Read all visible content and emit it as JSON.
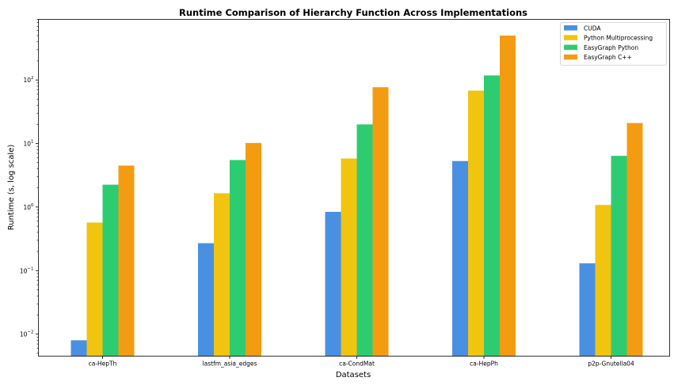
{
  "chart_data": {
    "type": "bar",
    "title": "Runtime Comparison of Hierarchy Function Across Implementations",
    "xlabel": "Datasets",
    "ylabel": "Runtime (s, log scale)",
    "yscale": "log",
    "ylim": [
      0.0045,
      900
    ],
    "yticks": [
      {
        "value": 0.01,
        "base": "10",
        "exp": "−2"
      },
      {
        "value": 0.1,
        "base": "10",
        "exp": "−1"
      },
      {
        "value": 1,
        "base": "10",
        "exp": "0"
      },
      {
        "value": 10,
        "base": "10",
        "exp": "1"
      },
      {
        "value": 100,
        "base": "10",
        "exp": "2"
      }
    ],
    "categories": [
      "ca-HepTh",
      "lastfm_asia_edges",
      "ca-CondMat",
      "ca-HepPh",
      "p2p-Gnutella04"
    ],
    "series": [
      {
        "name": "CUDA",
        "color": "#4a90e2",
        "values": [
          0.008,
          0.27,
          0.84,
          5.3,
          0.13
        ]
      },
      {
        "name": "Python Multiprocessing",
        "color": "#f1c40f",
        "values": [
          0.57,
          1.65,
          5.8,
          68,
          1.08
        ]
      },
      {
        "name": "EasyGraph Python",
        "color": "#2ecc71",
        "values": [
          2.25,
          5.5,
          20,
          118,
          6.4
        ]
      },
      {
        "name": "EasyGraph C++",
        "color": "#f39c12",
        "values": [
          4.5,
          10.2,
          77,
          500,
          21
        ]
      }
    ],
    "legend_position": "top-right",
    "grid": false
  }
}
